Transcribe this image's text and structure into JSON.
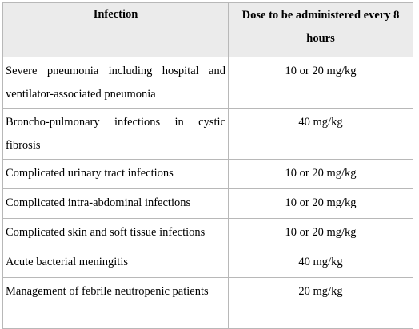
{
  "table": {
    "headers": {
      "infection": "Infection",
      "dose": "Dose to be administered every 8 hours"
    },
    "rows": [
      {
        "infection": "Severe pneumonia including hospital and ventilator-associated pneumonia",
        "dose": "10 or 20 mg/kg"
      },
      {
        "infection": "Broncho-pulmonary infections in cystic fibrosis",
        "dose": "40 mg/kg"
      },
      {
        "infection": "Complicated urinary tract infections",
        "dose": "10 or 20 mg/kg"
      },
      {
        "infection": "Complicated intra-abdominal infections",
        "dose": "10 or 20 mg/kg"
      },
      {
        "infection": "Complicated skin and soft tissue infections",
        "dose": "10 or 20 mg/kg"
      },
      {
        "infection": "Acute bacterial meningitis",
        "dose": "40 mg/kg"
      },
      {
        "infection": "Management of febrile neutropenic patients",
        "dose": "20 mg/kg"
      }
    ]
  }
}
